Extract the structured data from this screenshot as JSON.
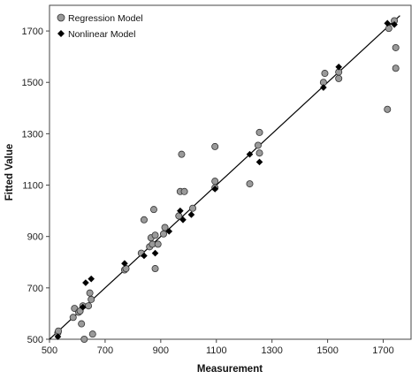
{
  "chart_data": {
    "type": "scatter",
    "title": "",
    "xlabel": "Measurement",
    "ylabel": "Fitted Value",
    "xlim": [
      500,
      1800
    ],
    "ylim": [
      500,
      1800
    ],
    "xticks": [
      500,
      700,
      900,
      1100,
      1300,
      1500,
      1700
    ],
    "yticks": [
      500,
      700,
      900,
      1100,
      1300,
      1500,
      1700
    ],
    "xtick_labels": [
      "500",
      "700",
      "900",
      "1100",
      "1300",
      "1500",
      "1700"
    ],
    "ytick_labels": [
      "500",
      "700",
      "900",
      "1100",
      "1300",
      "1500",
      "1700"
    ],
    "grid": false,
    "legend_position": "top-left",
    "reference_line": {
      "type": "identity",
      "from": 500,
      "to": 1760,
      "color": "#000000"
    },
    "series": [
      {
        "name": "Regression Model",
        "marker": "circle",
        "color": "#9a9a9a",
        "edge_color": "#333333",
        "points": [
          [
            530,
            525
          ],
          [
            532,
            532
          ],
          [
            585,
            585
          ],
          [
            590,
            620
          ],
          [
            605,
            605
          ],
          [
            610,
            610
          ],
          [
            615,
            560
          ],
          [
            620,
            630
          ],
          [
            625,
            500
          ],
          [
            640,
            630
          ],
          [
            645,
            680
          ],
          [
            650,
            655
          ],
          [
            655,
            520
          ],
          [
            770,
            770
          ],
          [
            775,
            775
          ],
          [
            830,
            835
          ],
          [
            840,
            965
          ],
          [
            860,
            860
          ],
          [
            865,
            895
          ],
          [
            870,
            870
          ],
          [
            875,
            1005
          ],
          [
            880,
            905
          ],
          [
            880,
            775
          ],
          [
            890,
            870
          ],
          [
            910,
            910
          ],
          [
            915,
            935
          ],
          [
            965,
            980
          ],
          [
            970,
            1075
          ],
          [
            975,
            1220
          ],
          [
            985,
            1075
          ],
          [
            1015,
            1010
          ],
          [
            1095,
            1090
          ],
          [
            1095,
            1115
          ],
          [
            1095,
            1250
          ],
          [
            1220,
            1105
          ],
          [
            1250,
            1255
          ],
          [
            1255,
            1225
          ],
          [
            1255,
            1305
          ],
          [
            1485,
            1500
          ],
          [
            1490,
            1535
          ],
          [
            1540,
            1515
          ],
          [
            1540,
            1540
          ],
          [
            1715,
            1395
          ],
          [
            1720,
            1710
          ],
          [
            1740,
            1740
          ],
          [
            1745,
            1635
          ],
          [
            1745,
            1555
          ]
        ]
      },
      {
        "name": "Nonlinear Model",
        "marker": "diamond",
        "color": "#000000",
        "points": [
          [
            530,
            510
          ],
          [
            620,
            625
          ],
          [
            630,
            720
          ],
          [
            650,
            735
          ],
          [
            770,
            795
          ],
          [
            840,
            825
          ],
          [
            880,
            835
          ],
          [
            930,
            920
          ],
          [
            970,
            1000
          ],
          [
            980,
            965
          ],
          [
            1010,
            985
          ],
          [
            1095,
            1085
          ],
          [
            1220,
            1220
          ],
          [
            1255,
            1190
          ],
          [
            1485,
            1480
          ],
          [
            1540,
            1560
          ],
          [
            1715,
            1730
          ],
          [
            1740,
            1725
          ]
        ]
      }
    ]
  }
}
